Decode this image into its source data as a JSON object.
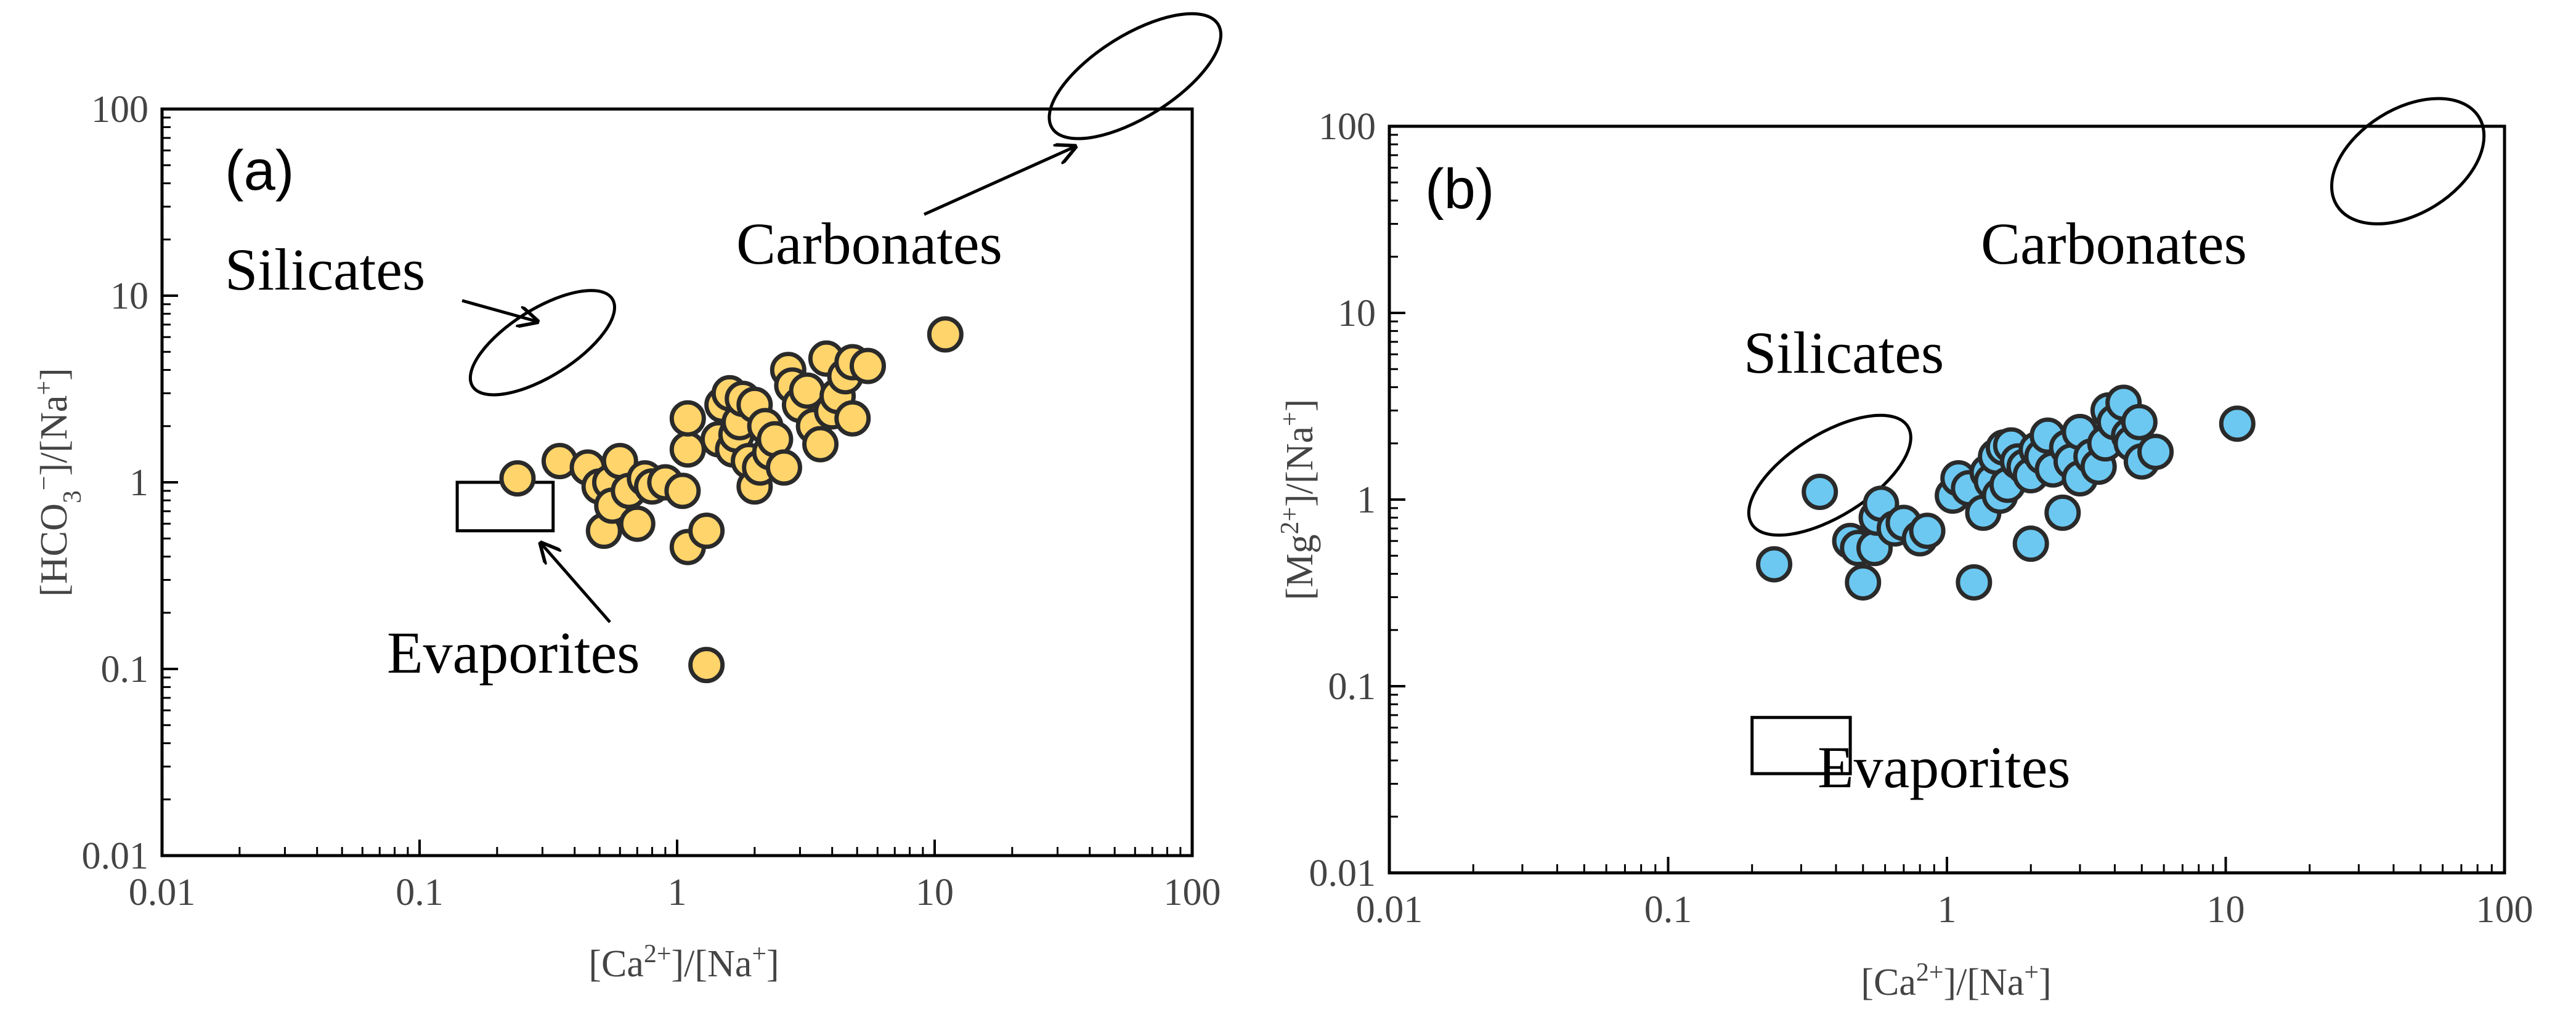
{
  "chart_data": [
    {
      "type": "scatter",
      "panel_label": "(a)",
      "xlabel": {
        "pre": "[Ca",
        "sup": "2+",
        "post": "]/[Na",
        "sup2": "+",
        "end": "]"
      },
      "ylabel": {
        "pre": "[HCO",
        "sub": "3",
        "sup": "−",
        "post": "]/[Na",
        "sup2": "+",
        "end": "]"
      },
      "xscale": "log",
      "yscale": "log",
      "xlim": [
        0.01,
        100
      ],
      "ylim": [
        0.01,
        100
      ],
      "xticks": [
        "0.01",
        "0.1",
        "1",
        "10",
        "100"
      ],
      "yticks": [
        "0.01",
        "0.1",
        "1",
        "10",
        "100"
      ],
      "marker_color": "#FFD46B",
      "points": [
        [
          0.24,
          1.05
        ],
        [
          0.35,
          1.3
        ],
        [
          0.45,
          1.2
        ],
        [
          0.5,
          0.95
        ],
        [
          0.55,
          1.0
        ],
        [
          0.52,
          0.55
        ],
        [
          0.56,
          0.75
        ],
        [
          0.6,
          1.3
        ],
        [
          0.65,
          0.9
        ],
        [
          0.7,
          0.6
        ],
        [
          0.75,
          1.05
        ],
        [
          0.8,
          0.95
        ],
        [
          0.9,
          1.0
        ],
        [
          1.05,
          0.9
        ],
        [
          1.1,
          0.45
        ],
        [
          1.1,
          1.5
        ],
        [
          1.1,
          2.2
        ],
        [
          1.3,
          0.55
        ],
        [
          1.3,
          0.105
        ],
        [
          1.45,
          1.7
        ],
        [
          1.5,
          2.6
        ],
        [
          1.6,
          3.0
        ],
        [
          1.65,
          1.5
        ],
        [
          1.7,
          1.8
        ],
        [
          1.75,
          2.1
        ],
        [
          1.8,
          2.8
        ],
        [
          1.9,
          1.3
        ],
        [
          2.0,
          0.95
        ],
        [
          2.0,
          2.6
        ],
        [
          2.1,
          1.2
        ],
        [
          2.2,
          2.0
        ],
        [
          2.3,
          1.45
        ],
        [
          2.4,
          1.7
        ],
        [
          2.6,
          1.2
        ],
        [
          2.7,
          4.0
        ],
        [
          2.8,
          3.3
        ],
        [
          3.0,
          2.6
        ],
        [
          3.2,
          3.1
        ],
        [
          3.4,
          2.0
        ],
        [
          3.6,
          1.6
        ],
        [
          3.8,
          4.6
        ],
        [
          4.0,
          2.4
        ],
        [
          4.2,
          2.9
        ],
        [
          4.5,
          3.7
        ],
        [
          4.8,
          2.2
        ],
        [
          4.8,
          4.4
        ],
        [
          5.5,
          4.2
        ],
        [
          11.0,
          6.2
        ]
      ],
      "regions": [
        {
          "name": "Carbonates",
          "kind": "ellipse",
          "cx": 60,
          "cy": 150,
          "rx_dec": 0.38,
          "ry_dec": 0.22
        },
        {
          "name": "Silicates",
          "kind": "ellipse",
          "cx": 0.3,
          "cy": 5.6,
          "rx_dec": 0.32,
          "ry_dec": 0.18
        },
        {
          "name": "Evaporites",
          "kind": "box",
          "x0": 0.14,
          "x1": 0.33,
          "y0": 0.55,
          "y1": 1.0
        }
      ]
    },
    {
      "type": "scatter",
      "panel_label": "(b)",
      "xlabel": {
        "pre": "[Ca",
        "sup": "2+",
        "post": "]/[Na",
        "sup2": "+",
        "end": "]"
      },
      "ylabel": {
        "pre": "[Mg",
        "sup": "2+",
        "post": "]/[Na",
        "sup2": "+",
        "end": "]"
      },
      "xscale": "log",
      "yscale": "log",
      "xlim": [
        0.01,
        100
      ],
      "ylim": [
        0.01,
        100
      ],
      "xticks": [
        "0.01",
        "0.1",
        "1",
        "10",
        "100"
      ],
      "yticks": [
        "0.01",
        "0.1",
        "1",
        "10",
        "100"
      ],
      "marker_color": "#6CC8F0",
      "points": [
        [
          0.24,
          0.45
        ],
        [
          0.35,
          1.1
        ],
        [
          0.45,
          0.6
        ],
        [
          0.48,
          0.55
        ],
        [
          0.5,
          0.36
        ],
        [
          0.55,
          0.55
        ],
        [
          0.56,
          0.8
        ],
        [
          0.58,
          0.95
        ],
        [
          0.65,
          0.7
        ],
        [
          0.7,
          0.75
        ],
        [
          0.8,
          0.62
        ],
        [
          0.85,
          0.68
        ],
        [
          1.05,
          1.05
        ],
        [
          1.1,
          1.3
        ],
        [
          1.2,
          1.15
        ],
        [
          1.25,
          0.36
        ],
        [
          1.35,
          0.85
        ],
        [
          1.4,
          1.4
        ],
        [
          1.45,
          1.25
        ],
        [
          1.5,
          1.7
        ],
        [
          1.55,
          1.05
        ],
        [
          1.6,
          1.9
        ],
        [
          1.65,
          1.2
        ],
        [
          1.7,
          1.95
        ],
        [
          1.8,
          1.6
        ],
        [
          1.9,
          1.5
        ],
        [
          2.0,
          1.35
        ],
        [
          2.0,
          0.58
        ],
        [
          2.1,
          1.85
        ],
        [
          2.2,
          1.7
        ],
        [
          2.3,
          2.2
        ],
        [
          2.4,
          1.45
        ],
        [
          2.6,
          0.85
        ],
        [
          2.7,
          1.9
        ],
        [
          2.8,
          1.6
        ],
        [
          3.0,
          1.3
        ],
        [
          3.0,
          2.3
        ],
        [
          3.3,
          1.7
        ],
        [
          3.5,
          1.5
        ],
        [
          3.7,
          2.0
        ],
        [
          3.8,
          3.0
        ],
        [
          4.0,
          2.6
        ],
        [
          4.3,
          3.3
        ],
        [
          4.5,
          2.2
        ],
        [
          4.6,
          2.0
        ],
        [
          4.9,
          2.6
        ],
        [
          5.0,
          1.6
        ],
        [
          5.6,
          1.8
        ],
        [
          11.0,
          2.55
        ]
      ],
      "regions": [
        {
          "name": "Carbonates",
          "kind": "ellipse",
          "cx": 45,
          "cy": 65,
          "rx_dec": 0.3,
          "ry_dec": 0.28
        },
        {
          "name": "Silicates",
          "kind": "ellipse",
          "cx": 0.38,
          "cy": 1.35,
          "rx_dec": 0.33,
          "ry_dec": 0.22
        },
        {
          "name": "Evaporites",
          "kind": "box",
          "x0": 0.2,
          "x1": 0.45,
          "y0": 0.034,
          "y1": 0.068
        }
      ]
    }
  ]
}
